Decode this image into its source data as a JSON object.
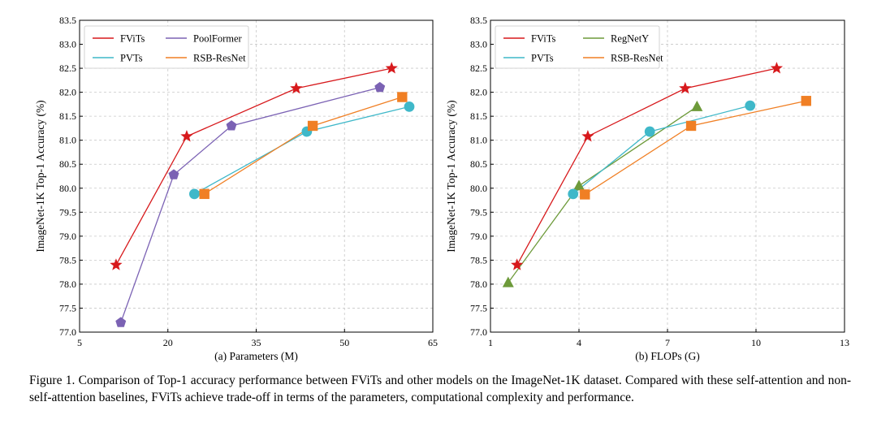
{
  "chart_data": [
    {
      "type": "line",
      "xlabel": "(a) Parameters (M)",
      "ylabel": "ImageNet-1K Top-1 Accuracy (%)",
      "xlim": [
        5,
        65
      ],
      "ylim": [
        77.0,
        83.5
      ],
      "xticks": [
        "5",
        "20",
        "35",
        "50",
        "65"
      ],
      "yticks": [
        "77.0",
        "77.5",
        "78.0",
        "78.5",
        "79.0",
        "79.5",
        "80.0",
        "80.5",
        "81.0",
        "81.5",
        "82.0",
        "82.5",
        "83.0",
        "83.5"
      ],
      "grid": "dashed",
      "legend_position": "top-left",
      "series": [
        {
          "name": "FViTs",
          "color": "#d7191c",
          "marker": "star",
          "x": [
            11.2,
            23.2,
            41.8,
            58.0
          ],
          "y": [
            78.4,
            81.08,
            82.08,
            82.5
          ]
        },
        {
          "name": "PoolFormer",
          "color": "#7b62b4",
          "marker": "pentagon",
          "x": [
            12.0,
            21.0,
            30.8,
            56.0
          ],
          "y": [
            77.2,
            80.28,
            81.3,
            82.1
          ]
        },
        {
          "name": "PVTs",
          "color": "#3fb8c9",
          "marker": "circle",
          "x": [
            24.5,
            43.6,
            61.0
          ],
          "y": [
            79.88,
            81.18,
            81.7
          ]
        },
        {
          "name": "RSB-ResNet",
          "color": "#f07f24",
          "marker": "square",
          "x": [
            26.2,
            44.6,
            59.8
          ],
          "y": [
            79.88,
            81.3,
            81.9
          ]
        }
      ]
    },
    {
      "type": "line",
      "xlabel": "(b) FLOPs (G)",
      "ylabel": "ImageNet-1K Top-1 Accuracy (%)",
      "xlim": [
        1,
        13
      ],
      "ylim": [
        77.0,
        83.5
      ],
      "xticks": [
        "1",
        "4",
        "7",
        "10",
        "13"
      ],
      "yticks": [
        "77.0",
        "77.5",
        "78.0",
        "78.5",
        "79.0",
        "79.5",
        "80.0",
        "80.5",
        "81.0",
        "81.5",
        "82.0",
        "82.5",
        "83.0",
        "83.5"
      ],
      "grid": "dashed",
      "legend_position": "top-left",
      "series": [
        {
          "name": "FViTs",
          "color": "#d7191c",
          "marker": "star",
          "x": [
            1.9,
            4.3,
            7.6,
            10.7
          ],
          "y": [
            78.4,
            81.08,
            82.08,
            82.5
          ]
        },
        {
          "name": "RegNetY",
          "color": "#6d9a3a",
          "marker": "triangle",
          "x": [
            1.6,
            4.0,
            8.0
          ],
          "y": [
            78.03,
            80.05,
            81.7
          ]
        },
        {
          "name": "PVTs",
          "color": "#3fb8c9",
          "marker": "circle",
          "x": [
            3.8,
            6.4,
            9.8
          ],
          "y": [
            79.88,
            81.18,
            81.72
          ]
        },
        {
          "name": "RSB-ResNet",
          "color": "#f07f24",
          "marker": "square",
          "x": [
            4.2,
            7.8,
            11.7
          ],
          "y": [
            79.87,
            81.3,
            81.82
          ]
        }
      ]
    }
  ],
  "caption": "Figure 1.  Comparison of Top-1 accuracy performance between FViTs and other models on the ImageNet-1K dataset.  Compared with these self-attention and non-self-attention baselines, FViTs achieve trade-off in terms of the parameters, computational complexity and performance."
}
